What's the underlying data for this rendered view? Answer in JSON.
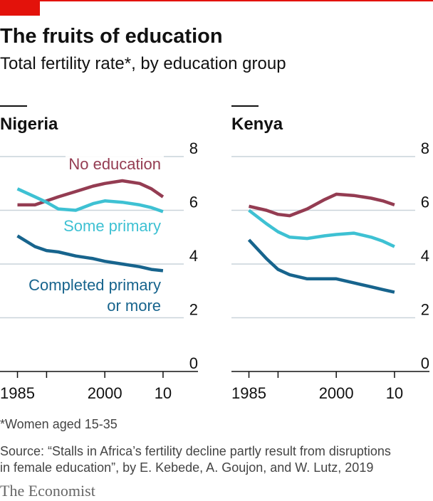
{
  "title": "The fruits of education",
  "subtitle": "Total fertility rate*, by education group",
  "footnote": "*Women aged 15-35",
  "source": [
    "Source: “Stalls in Africa’s fertility decline partly result from disruptions",
    "in female education”, by E. Kebede, A. Goujon, and W. Lutz, 2019"
  ],
  "brand": "The Economist",
  "chart_data": [
    {
      "type": "line",
      "title": "Nigeria",
      "x": [
        1985,
        1988,
        1990,
        1992,
        1995,
        1998,
        2000,
        2003,
        2006,
        2008,
        2010
      ],
      "xlim": [
        1982,
        2016
      ],
      "xticks": [
        1985,
        {
          "value": 1990,
          "label": null
        },
        2000,
        {
          "value": 2010,
          "label": "10"
        }
      ],
      "ylim": [
        0,
        8
      ],
      "yticks": [
        0,
        2,
        4,
        6,
        8
      ],
      "grid": true,
      "series": [
        {
          "name": "No education",
          "color": "#943c52",
          "values": [
            6.2,
            6.2,
            6.35,
            6.5,
            6.7,
            6.9,
            7.0,
            7.1,
            7.0,
            6.8,
            6.5
          ]
        },
        {
          "name": "Some primary",
          "color": "#3ec1d3",
          "values": [
            6.8,
            6.5,
            6.3,
            6.05,
            6.0,
            6.25,
            6.35,
            6.3,
            6.2,
            6.1,
            5.95
          ]
        },
        {
          "name": "Completed primary\nor more",
          "color": "#17648d",
          "values": [
            5.05,
            4.65,
            4.5,
            4.45,
            4.3,
            4.2,
            4.1,
            4.0,
            3.9,
            3.8,
            3.75
          ]
        }
      ]
    },
    {
      "type": "line",
      "title": "Kenya",
      "x": [
        1985,
        1988,
        1990,
        1992,
        1995,
        1998,
        2000,
        2003,
        2006,
        2008,
        2010
      ],
      "xlim": [
        1982,
        2016
      ],
      "xticks": [
        1985,
        {
          "value": 1990,
          "label": null
        },
        2000,
        {
          "value": 2010,
          "label": "10"
        }
      ],
      "ylim": [
        0,
        8
      ],
      "yticks": [
        0,
        2,
        4,
        6,
        8
      ],
      "grid": true,
      "series": [
        {
          "color": "#943c52",
          "values": [
            6.15,
            6.0,
            5.85,
            5.8,
            6.05,
            6.4,
            6.6,
            6.55,
            6.45,
            6.35,
            6.2
          ]
        },
        {
          "color": "#3ec1d3",
          "values": [
            6.0,
            5.5,
            5.2,
            5.0,
            4.95,
            5.05,
            5.1,
            5.15,
            5.0,
            4.85,
            4.65
          ]
        },
        {
          "color": "#17648d",
          "values": [
            4.9,
            4.2,
            3.8,
            3.6,
            3.45,
            3.45,
            3.45,
            3.3,
            3.15,
            3.05,
            2.95
          ]
        }
      ]
    }
  ]
}
